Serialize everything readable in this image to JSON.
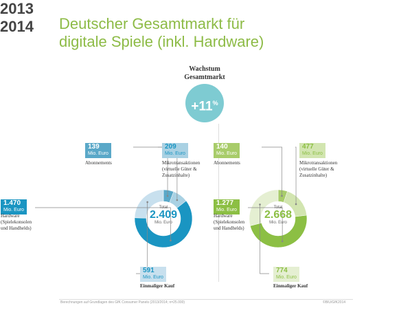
{
  "title_line1": "Deutscher Gesamtmarkt für",
  "title_line2": "digitale Spiele (inkl. Hardware)",
  "growth": {
    "label_line1": "Wachstum",
    "label_line2": "Gesamtmarkt",
    "value": "+11",
    "unit": "%",
    "color": "#7ecbd2"
  },
  "footer": {
    "source": "Berechnungen auf Grundlagen des GfK Consumer Panels (2013/2014; n=25.000)",
    "copyright": "©BIU/GfK2014"
  },
  "chart_data": [
    {
      "type": "pie",
      "year": "2013",
      "total_label": "Total",
      "total": "2.409",
      "total_unit": "Mio. Euro",
      "categories": [
        "Abonnements",
        "Mikrotransaktionen (virtuelle Güter & Zusatzinhalte)",
        "Einmaliger Kauf",
        "Hardware (Spielekonsolen und Handhelds)"
      ],
      "values": [
        139,
        209,
        1470,
        591
      ],
      "value_labels": [
        "139",
        "209",
        "1.470",
        "591"
      ],
      "unit": "Mio. Euro",
      "colors": [
        "#5aa8c8",
        "#a9d1e3",
        "#1a95c2",
        "#c8e0ee"
      ]
    },
    {
      "type": "pie",
      "year": "2014",
      "total_label": "Total",
      "total": "2.668",
      "total_unit": "Mio. Euro",
      "categories": [
        "Abonnements",
        "Mikrotransaktionen (virtuelle Güter & Zusatzinhalte)",
        "Einmaliger Kauf",
        "Hardware (Spielekonsolen und Handhelds)"
      ],
      "values": [
        140,
        477,
        1277,
        774
      ],
      "value_labels": [
        "140",
        "477",
        "1.277",
        "774"
      ],
      "unit": "Mio. Euro",
      "colors": [
        "#a8cc6a",
        "#d2e5b0",
        "#8cbf44",
        "#e5efd2"
      ]
    }
  ],
  "labels": {
    "abo": "Abonnements",
    "mikro1": "Mikrotransaktionen",
    "mikro2": "(virtuelle Güter &",
    "mikro3": "Zusatzinhalte)",
    "hw1": "Hardware",
    "hw2": "(Spielekonsolen",
    "hw3": "und Handhelds)",
    "kauf": "Einmaliger Kauf"
  }
}
